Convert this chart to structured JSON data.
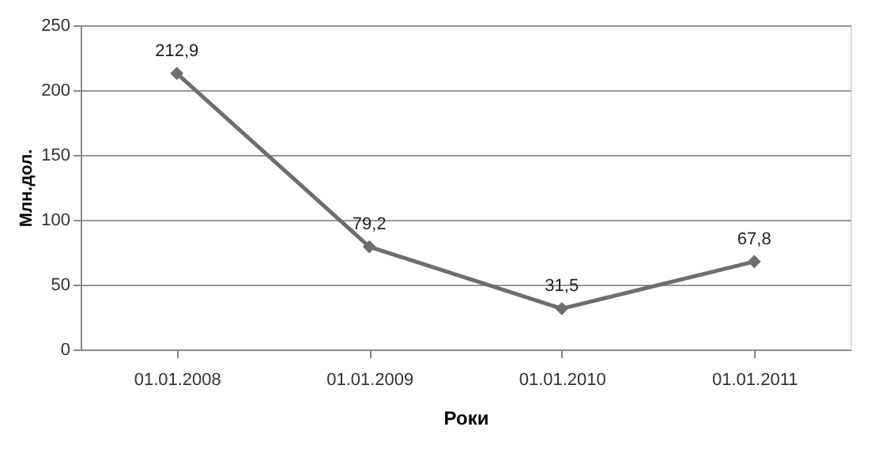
{
  "chart_data": {
    "type": "line",
    "xlabel": "Роки",
    "ylabel": "Млн.дол.",
    "categories": [
      "01.01.2008",
      "01.01.2009",
      "01.01.2010",
      "01.01.2011"
    ],
    "series": [
      {
        "color": "#6e6e6e",
        "values": [
          212.9,
          79.2,
          31.5,
          67.8
        ],
        "value_labels": [
          "212,9",
          "79,2",
          "31,5",
          "67,8"
        ]
      }
    ],
    "ylim": [
      0,
      250
    ],
    "yticks": [
      0,
      50,
      100,
      150,
      200,
      250
    ],
    "grid": "y",
    "marker": "diamond",
    "line_style": "solid"
  }
}
